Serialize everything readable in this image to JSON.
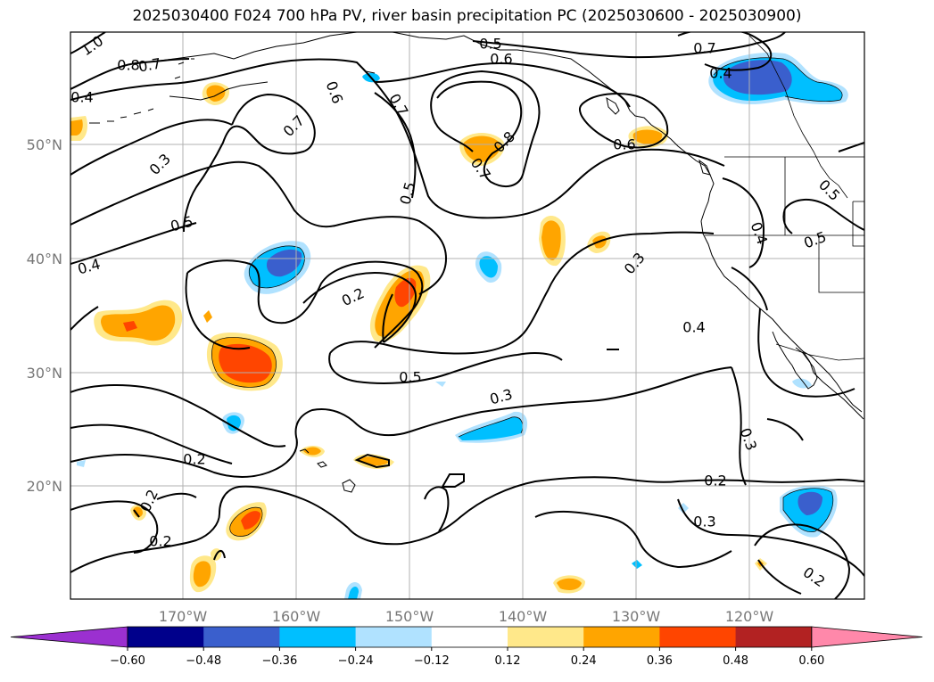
{
  "title": "2025030400 F024 700 hPa PV, river basin precipitation PC (2025030600 - 2025030900)",
  "lat_labels": [
    "50°N",
    "40°N",
    "30°N",
    "20°N"
  ],
  "lon_labels": [
    "170°W",
    "160°W",
    "150°W",
    "140°W",
    "130°W",
    "120°W"
  ],
  "contour_labels": [
    "1.0",
    "0.8",
    "0.7",
    "0.4",
    "0.5",
    "0.6",
    "0.7",
    "0.6",
    "0.7",
    "0.8",
    "0.7",
    "0.6",
    "0.5",
    "0.5",
    "0.4",
    "0.3",
    "0.4",
    "0.7",
    "0.3",
    "0.5",
    "0.5",
    "0.2",
    "0.3",
    "0.4",
    "0.4",
    "0.5",
    "0.2",
    "0.3",
    "0.2",
    "0.2",
    "0.2",
    "0.3",
    "0.2",
    "0.2",
    "0.2"
  ],
  "colorbar": {
    "ticks": [
      "−0.60",
      "−0.48",
      "−0.36",
      "−0.24",
      "−0.12",
      "0.12",
      "0.24",
      "0.36",
      "0.48",
      "0.60"
    ],
    "colors": [
      "#9b30d0",
      "#00008b",
      "#3a5fcd",
      "#00bfff",
      "#b0e2ff",
      "#ffffff",
      "#ffe88a",
      "#ffa500",
      "#ff4500",
      "#b22222",
      "#ff88aa"
    ]
  },
  "legend_colors": {
    "c012": "#ffe88a",
    "c024": "#ffa500",
    "c036": "#ff4500",
    "n012": "#b0e2ff",
    "n024": "#00bfff",
    "n036": "#3a5fcd"
  }
}
